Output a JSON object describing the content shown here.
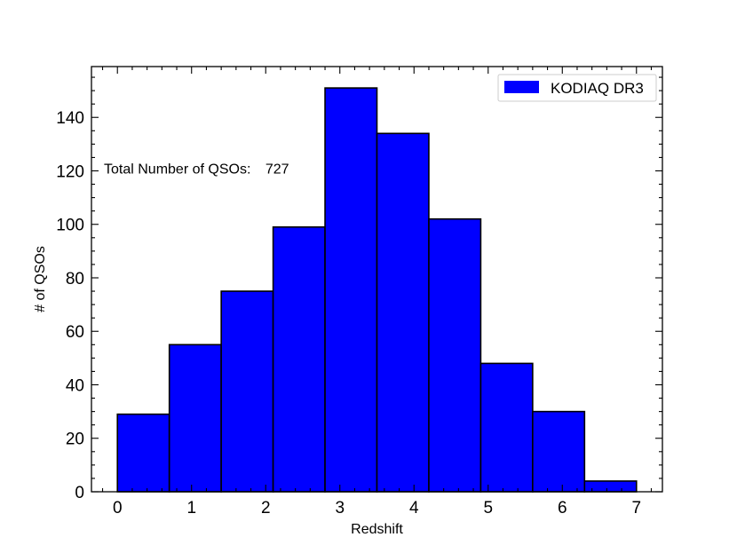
{
  "chart_data": {
    "type": "bar",
    "bin_edges": [
      0.0,
      0.7,
      1.4,
      2.1,
      2.8,
      3.5,
      4.2,
      4.9,
      5.6,
      6.3,
      7.0
    ],
    "values": [
      29,
      55,
      75,
      99,
      151,
      134,
      102,
      48,
      30,
      4
    ],
    "xlabel": "Redshift",
    "ylabel": "# of QSOs",
    "xlim": [
      -0.35,
      7.35
    ],
    "ylim": [
      0,
      159
    ],
    "xticks": [
      0,
      1,
      2,
      3,
      4,
      5,
      6,
      7
    ],
    "yticks": [
      0,
      20,
      40,
      60,
      80,
      100,
      120,
      140
    ],
    "annotation": {
      "text": "Total Number of QSOs:",
      "value": "727"
    },
    "legend": {
      "label": "KODIAQ DR3",
      "placement": "top-right"
    },
    "bar_color": "#0000ff",
    "edge_color": "#000000"
  }
}
